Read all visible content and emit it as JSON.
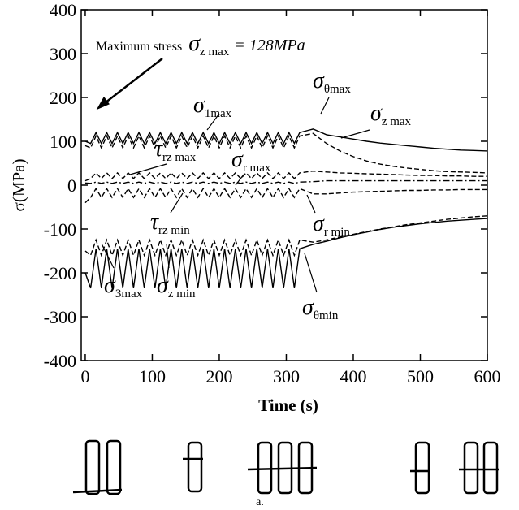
{
  "chart_data": {
    "type": "line",
    "y_label": "σ(MPa)",
    "x_label": "Time (s)",
    "caption": "a.",
    "xlim": [
      -6,
      600
    ],
    "ylim": [
      -400,
      400
    ],
    "xticks": [
      0,
      100,
      200,
      300,
      400,
      500,
      600
    ],
    "yticks": [
      -400,
      -300,
      -200,
      -100,
      0,
      100,
      200,
      300,
      400
    ],
    "x": [
      0,
      8,
      16,
      24,
      32,
      40,
      48,
      56,
      64,
      72,
      80,
      88,
      96,
      104,
      112,
      120,
      128,
      136,
      144,
      152,
      160,
      168,
      176,
      184,
      192,
      200,
      208,
      216,
      224,
      232,
      240,
      248,
      256,
      264,
      272,
      280,
      288,
      296,
      304,
      312,
      320,
      340,
      360,
      380,
      400,
      420,
      440,
      460,
      480,
      500,
      520,
      540,
      560,
      580,
      600
    ],
    "series": [
      {
        "color": "#000",
        "dash": "solid",
        "values": [
          100,
          95,
          120,
          95,
          120,
          95,
          120,
          95,
          120,
          95,
          120,
          95,
          120,
          95,
          120,
          95,
          120,
          95,
          120,
          95,
          120,
          95,
          120,
          95,
          120,
          95,
          120,
          95,
          120,
          95,
          120,
          95,
          120,
          95,
          120,
          95,
          120,
          95,
          120,
          95,
          120,
          128,
          115,
          110,
          105,
          100,
          96,
          93,
          90,
          87,
          84,
          82,
          80,
          79,
          78
        ]
      },
      {
        "color": "#000",
        "dash": "dashed",
        "values": [
          90,
          85,
          112,
          85,
          112,
          85,
          112,
          85,
          112,
          85,
          112,
          85,
          112,
          85,
          112,
          85,
          112,
          85,
          112,
          85,
          112,
          85,
          112,
          85,
          112,
          85,
          112,
          85,
          112,
          85,
          112,
          85,
          112,
          85,
          112,
          85,
          112,
          85,
          112,
          85,
          112,
          118,
          95,
          78,
          65,
          55,
          48,
          43,
          39,
          36,
          33,
          31,
          30,
          29,
          28
        ]
      },
      {
        "color": "#000",
        "dash": "dashed",
        "values": [
          10,
          15,
          28,
          15,
          28,
          15,
          28,
          15,
          28,
          15,
          28,
          15,
          28,
          15,
          28,
          15,
          28,
          15,
          28,
          15,
          28,
          15,
          28,
          15,
          28,
          15,
          28,
          15,
          28,
          15,
          28,
          15,
          28,
          15,
          28,
          15,
          28,
          15,
          28,
          15,
          28,
          32,
          30,
          28,
          27,
          26,
          25,
          24,
          23,
          22,
          22,
          21,
          21,
          20,
          20
        ]
      },
      {
        "color": "#000",
        "dash": "dashdot",
        "values": [
          5,
          4,
          7,
          4,
          7,
          4,
          7,
          4,
          7,
          4,
          7,
          4,
          7,
          4,
          7,
          4,
          7,
          4,
          7,
          4,
          7,
          4,
          7,
          4,
          7,
          4,
          7,
          4,
          7,
          4,
          7,
          4,
          7,
          4,
          7,
          4,
          7,
          4,
          7,
          4,
          7,
          8,
          10,
          10,
          10,
          10,
          10,
          10,
          10,
          10,
          10,
          10,
          10,
          10,
          10
        ]
      },
      {
        "color": "#000",
        "dash": "dashed",
        "values": [
          -40,
          -28,
          -8,
          -28,
          -8,
          -28,
          -8,
          -28,
          -8,
          -28,
          -8,
          -28,
          -8,
          -28,
          -8,
          -28,
          -8,
          -28,
          -8,
          -28,
          -8,
          -28,
          -8,
          -28,
          -8,
          -28,
          -8,
          -28,
          -8,
          -28,
          -8,
          -28,
          -8,
          -28,
          -8,
          -28,
          -8,
          -28,
          -8,
          -28,
          -8,
          -20,
          -20,
          -18,
          -16,
          -15,
          -14,
          -13,
          -12,
          -12,
          -11,
          -11,
          -10,
          -10,
          -10
        ]
      },
      {
        "color": "#000",
        "dash": "dashed",
        "values": [
          -150,
          -160,
          -125,
          -160,
          -125,
          -160,
          -125,
          -160,
          -125,
          -160,
          -125,
          -160,
          -125,
          -160,
          -125,
          -160,
          -125,
          -160,
          -125,
          -160,
          -125,
          -160,
          -125,
          -160,
          -125,
          -160,
          -125,
          -160,
          -125,
          -160,
          -125,
          -160,
          -125,
          -160,
          -125,
          -160,
          -125,
          -160,
          -125,
          -160,
          -125,
          -130,
          -125,
          -118,
          -112,
          -106,
          -100,
          -95,
          -90,
          -86,
          -82,
          -78,
          -75,
          -72,
          -70
        ]
      },
      {
        "color": "#000",
        "dash": "solid",
        "values": [
          -200,
          -235,
          -145,
          -235,
          -145,
          -235,
          -145,
          -235,
          -145,
          -235,
          -145,
          -235,
          -145,
          -235,
          -145,
          -235,
          -145,
          -235,
          -145,
          -235,
          -145,
          -235,
          -145,
          -235,
          -145,
          -235,
          -145,
          -235,
          -145,
          -235,
          -145,
          -235,
          -145,
          -235,
          -145,
          -235,
          -145,
          -235,
          -145,
          -235,
          -145,
          -135,
          -128,
          -120,
          -113,
          -107,
          -101,
          -96,
          -92,
          -88,
          -85,
          -82,
          -80,
          -78,
          -76
        ]
      }
    ],
    "annotations": [
      {
        "prefix": "Maximum stress",
        "symbol": "σ",
        "sub": "z max",
        "suffix": "= 128MPa"
      },
      {
        "symbol": "σ",
        "sub": "1max"
      },
      {
        "symbol": "σ",
        "sub": "θmax"
      },
      {
        "symbol": "σ",
        "sub": "z max"
      },
      {
        "symbol": "τ",
        "sub": "rz max"
      },
      {
        "symbol": "σ",
        "sub": "r max"
      },
      {
        "symbol": "τ",
        "sub": "rz min"
      },
      {
        "symbol": "σ",
        "sub": "r min"
      },
      {
        "symbol": "σ",
        "sub": "3max"
      },
      {
        "symbol": "σ",
        "sub": "z min"
      },
      {
        "symbol": "σ",
        "sub": "θmin"
      }
    ]
  }
}
